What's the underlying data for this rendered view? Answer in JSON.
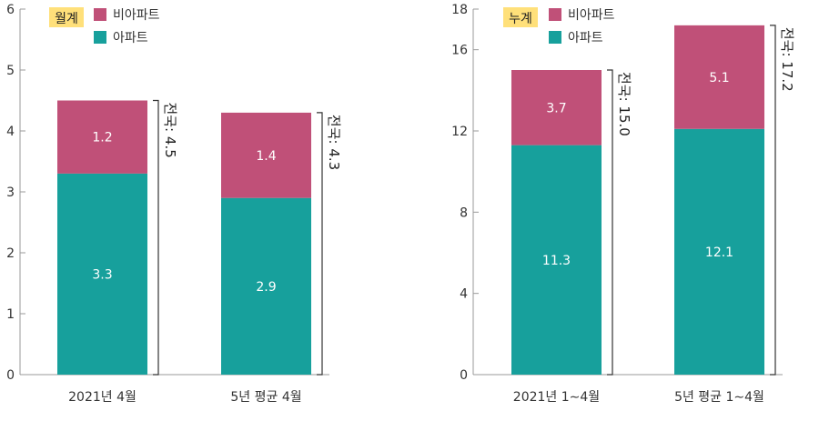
{
  "colors": {
    "non_apartment": "#C05078",
    "apartment": "#17A09C",
    "badge": "#FFE07A",
    "axis": "#999999",
    "bracket": "#333333"
  },
  "chart_data": [
    {
      "type": "bar",
      "stacked": true,
      "badge": "월계",
      "categories": [
        "2021년 4월",
        "5년 평균 4월"
      ],
      "series": [
        {
          "name": "아파트",
          "values": [
            3.3,
            2.9
          ],
          "labels": [
            "3.3",
            "2.9"
          ]
        },
        {
          "name": "비아파트",
          "values": [
            1.2,
            1.4
          ],
          "labels": [
            "1.2",
            "1.4"
          ]
        }
      ],
      "totals": [
        "전국: 4.5",
        "전국: 4.3"
      ],
      "total_values": [
        4.5,
        4.3
      ],
      "ylim": [
        0,
        6
      ],
      "yticks": [
        "0",
        "1",
        "2",
        "3",
        "4",
        "5",
        "6"
      ],
      "ytick_values": [
        0,
        1,
        2,
        3,
        4,
        5,
        6
      ],
      "grid": false,
      "legend": "top-left"
    },
    {
      "type": "bar",
      "stacked": true,
      "badge": "누계",
      "categories": [
        "2021년 1∼4월",
        "5년 평균 1∼4월"
      ],
      "series": [
        {
          "name": "아파트",
          "values": [
            11.3,
            12.1
          ],
          "labels": [
            "11.3",
            "12.1"
          ]
        },
        {
          "name": "비아파트",
          "values": [
            3.7,
            5.1
          ],
          "labels": [
            "3.7",
            "5.1"
          ]
        }
      ],
      "totals": [
        "전국: 15.0",
        "전국: 17.2"
      ],
      "total_values": [
        15.0,
        17.2
      ],
      "ylim": [
        0,
        18
      ],
      "yticks": [
        "0",
        "4",
        "8",
        "12",
        "16",
        "18"
      ],
      "ytick_values": [
        0,
        4,
        8,
        12,
        16,
        18
      ],
      "grid": false,
      "legend": "top-left"
    }
  ]
}
